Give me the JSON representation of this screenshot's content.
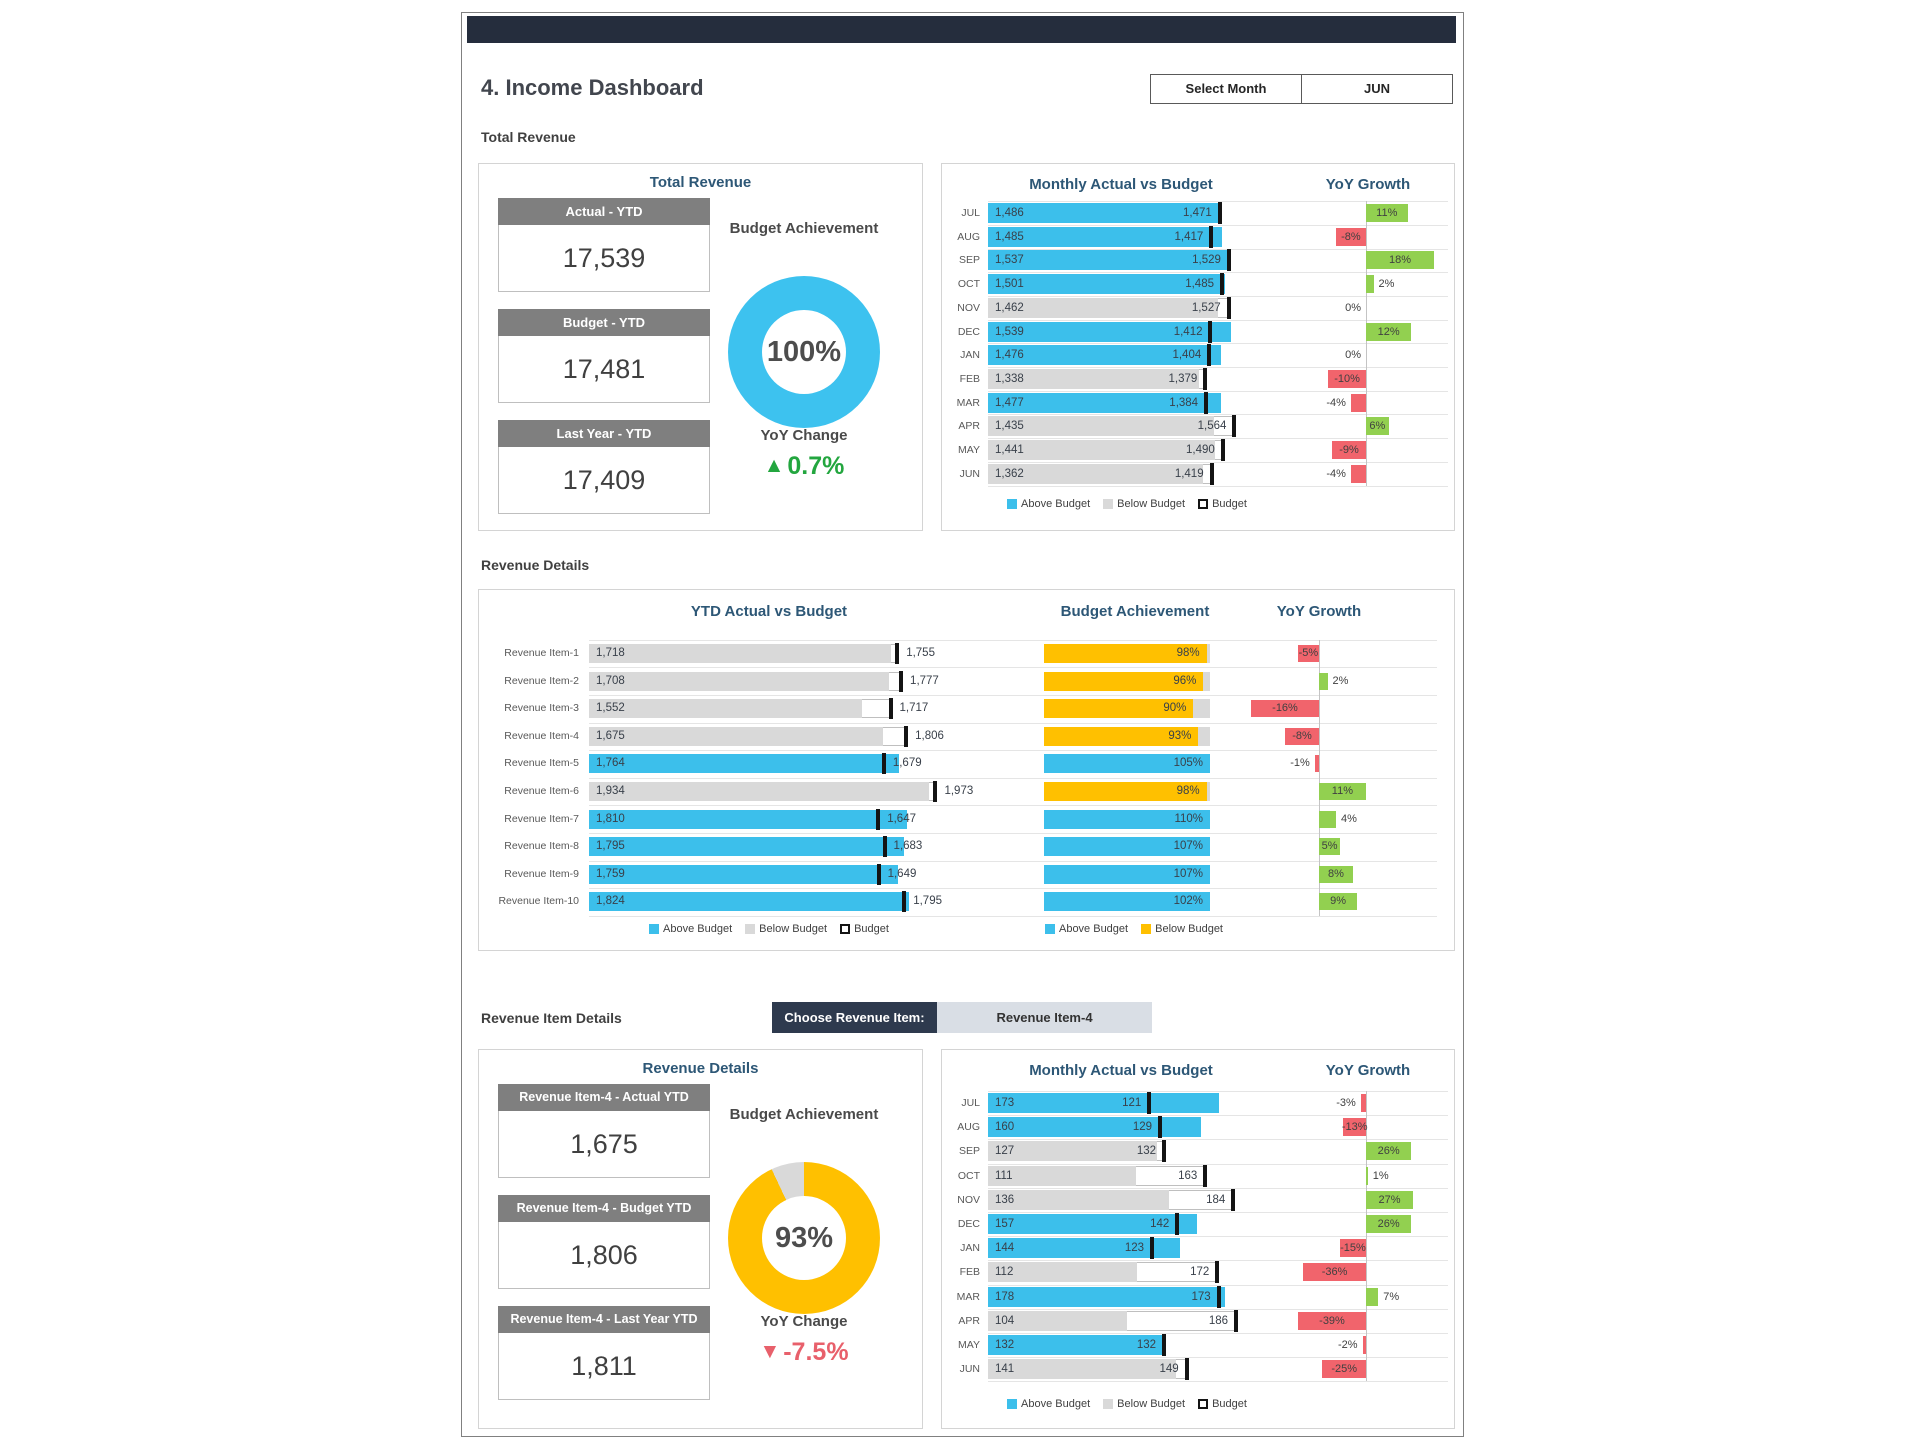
{
  "page": {
    "title": "4. Income Dashboard",
    "month_selector": {
      "label": "Select Month",
      "value": "JUN"
    },
    "section_labels": {
      "total_revenue": "Total Revenue",
      "revenue_details": "Revenue Details",
      "revenue_item_details": "Revenue Item Details"
    },
    "choose_item": {
      "label": "Choose Revenue Item:",
      "value": "Revenue Item-4"
    }
  },
  "colors": {
    "above_budget": "#3CBFEB",
    "below_budget_gray": "#D9D9D9",
    "below_budget_yellow": "#FFC000",
    "budget_marker": "#141414",
    "positive_green": "#92D050",
    "negative_red": "#F1646C",
    "donut_blue": "#3DC2EF",
    "donut_yellow": "#FFC000",
    "donut_rest_gray": "#D9D9D9",
    "title_navy": "#2D5776",
    "topbar": "#252D3D"
  },
  "summary_total": {
    "card_title": "Total Revenue",
    "boxes": [
      {
        "label": "Actual - YTD",
        "value": "17,539"
      },
      {
        "label": "Budget - YTD",
        "value": "17,481"
      },
      {
        "label": "Last Year - YTD",
        "value": "17,409"
      }
    ],
    "budget_achievement": {
      "title": "Budget Achievement",
      "pct": 100,
      "color_key": "blue"
    },
    "yoy_change": {
      "title": "YoY Change",
      "text": "0.7%",
      "direction": "up"
    }
  },
  "summary_item": {
    "card_title": "Revenue Details",
    "boxes": [
      {
        "label": "Revenue Item-4 - Actual YTD",
        "value": "1,675"
      },
      {
        "label": "Revenue Item-4 - Budget YTD",
        "value": "1,806"
      },
      {
        "label": "Revenue Item-4 - Last Year YTD",
        "value": "1,811"
      }
    ],
    "budget_achievement": {
      "title": "Budget Achievement",
      "pct": 93,
      "color_key": "yellow"
    },
    "yoy_change": {
      "title": "YoY Change",
      "text": "-7.5%",
      "direction": "down"
    }
  },
  "chart_data": [
    {
      "id": "monthly_total",
      "type": "bar",
      "title": "Monthly Actual vs Budget",
      "yoy_title": "YoY Growth",
      "categories": [
        "JUL",
        "AUG",
        "SEP",
        "OCT",
        "NOV",
        "DEC",
        "JAN",
        "FEB",
        "MAR",
        "APR",
        "MAY",
        "JUN"
      ],
      "series": [
        {
          "name": "Actual",
          "values": [
            1486,
            1485,
            1537,
            1501,
            1462,
            1539,
            1476,
            1338,
            1477,
            1435,
            1441,
            1362
          ]
        },
        {
          "name": "Budget",
          "values": [
            1471,
            1417,
            1529,
            1485,
            1527,
            1412,
            1404,
            1379,
            1384,
            1564,
            1490,
            1419
          ]
        }
      ],
      "yoy_growth_pct": [
        11,
        -8,
        18,
        2,
        0,
        12,
        0,
        -10,
        -4,
        6,
        -9,
        -4
      ],
      "scale_max": 1650,
      "yoy_axis_max": 18,
      "legend": [
        "Above Budget",
        "Below Budget",
        "Budget"
      ]
    },
    {
      "id": "ytd_items",
      "type": "bar",
      "title": "YTD Actual vs Budget",
      "achievement_title": "Budget Achievement",
      "yoy_title": "YoY Growth",
      "categories": [
        "Revenue Item-1",
        "Revenue Item-2",
        "Revenue Item-3",
        "Revenue Item-4",
        "Revenue Item-5",
        "Revenue Item-6",
        "Revenue Item-7",
        "Revenue Item-8",
        "Revenue Item-9",
        "Revenue Item-10"
      ],
      "series": [
        {
          "name": "Actual",
          "values": [
            1718,
            1708,
            1552,
            1675,
            1764,
            1934,
            1810,
            1795,
            1759,
            1824
          ]
        },
        {
          "name": "Budget",
          "values": [
            1755,
            1777,
            1717,
            1806,
            1679,
            1973,
            1647,
            1683,
            1649,
            1795
          ]
        }
      ],
      "budget_achievement_pct": [
        98,
        96,
        90,
        93,
        105,
        98,
        110,
        107,
        107,
        102
      ],
      "yoy_growth_pct": [
        -5,
        2,
        -16,
        -8,
        -1,
        11,
        4,
        5,
        8,
        9
      ],
      "scale_max": 2050,
      "yoy_axis_max": 16,
      "legend": [
        "Above Budget",
        "Below Budget",
        "Budget"
      ],
      "achievement_legend": [
        "Above Budget",
        "Below Budget"
      ]
    },
    {
      "id": "monthly_item",
      "type": "bar",
      "title": "Monthly Actual vs Budget",
      "yoy_title": "YoY Growth",
      "categories": [
        "JUL",
        "AUG",
        "SEP",
        "OCT",
        "NOV",
        "DEC",
        "JAN",
        "FEB",
        "MAR",
        "APR",
        "MAY",
        "JUN"
      ],
      "series": [
        {
          "name": "Actual",
          "values": [
            173,
            160,
            127,
            111,
            136,
            157,
            144,
            112,
            178,
            104,
            132,
            141
          ]
        },
        {
          "name": "Budget",
          "values": [
            121,
            129,
            132,
            163,
            184,
            142,
            123,
            172,
            173,
            186,
            132,
            149
          ]
        }
      ],
      "yoy_growth_pct": [
        -3,
        -13,
        26,
        1,
        27,
        26,
        -15,
        -36,
        7,
        -39,
        -2,
        -25
      ],
      "scale_max": 195,
      "yoy_axis_max": 39,
      "legend": [
        "Above Budget",
        "Below Budget",
        "Budget"
      ]
    }
  ]
}
